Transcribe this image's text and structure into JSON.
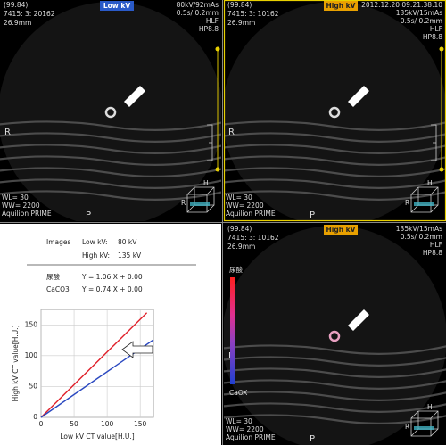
{
  "panels": [
    {
      "top_left": [
        "(99.84)",
        "7415: 3: 20162",
        "26.9mm"
      ],
      "badge": "Low kV",
      "top_right": [
        "80kV/92mAs",
        "0.5s/ 0.2mm",
        "HLF",
        "HP8.8"
      ],
      "orientation": [
        "R",
        "P"
      ],
      "bottom_left": [
        "WL= 30",
        "WW= 2200",
        "Aquilion PRIME"
      ],
      "cube": [
        "H",
        "R"
      ]
    },
    {
      "top_left": [
        "(99.84)",
        "7415: 3: 10162",
        "26.9mm"
      ],
      "badge": "High kV",
      "top_right": [
        "2012.12.20 09:21:38.10",
        "135kV/15mAs",
        "0.5s/ 0.2mm",
        "HLF",
        "HP8.8"
      ],
      "orientation": [
        "R",
        "P"
      ],
      "bottom_left": [
        "WL= 30",
        "WW= 2200",
        "Aquilion PRIME"
      ],
      "cube": [
        "H",
        "R"
      ]
    },
    {
      "top_left": [
        "(99.84)",
        "7415: 3: 10162",
        "26.9mm"
      ],
      "badge": "High kV",
      "top_right": [
        "135kV/15mAs",
        "0.5s/ 0.2mm",
        "HLF",
        "HP8.8"
      ],
      "orientation": [
        "R",
        "P"
      ],
      "bottom_left": [
        "WL= 30",
        "WW= 2200",
        "Aquilion PRIME"
      ],
      "cube": [
        "H",
        "R"
      ],
      "colorbar": [
        "尿酸",
        "CaOX"
      ]
    }
  ],
  "summary": {
    "images_label": "Images",
    "low_label": "Low kV:",
    "low_value": "80 kV",
    "high_label": "High kV:",
    "high_value": "135 kV",
    "equations": [
      [
        "尿酸",
        "Y = 1.06 X + 0.00"
      ],
      [
        "CaCO3",
        "Y = 0.74 X + 0.00"
      ]
    ]
  },
  "chart_data": {
    "type": "line",
    "x_label": "Low kV CT value[H.U.]",
    "y_label": "High kV CT value[H.U.]",
    "xlim": [
      0,
      170
    ],
    "ylim": [
      0,
      175
    ],
    "xticks": [
      0,
      50,
      100,
      150
    ],
    "yticks": [
      0,
      50,
      100,
      150
    ],
    "grid": true,
    "series": [
      {
        "color": "#e0202a",
        "x": [
          0,
          160
        ],
        "values": [
          0,
          169.6
        ]
      },
      {
        "color": "#2a48c0",
        "x": [
          0,
          170
        ],
        "values": [
          0,
          125.8
        ]
      }
    ]
  }
}
